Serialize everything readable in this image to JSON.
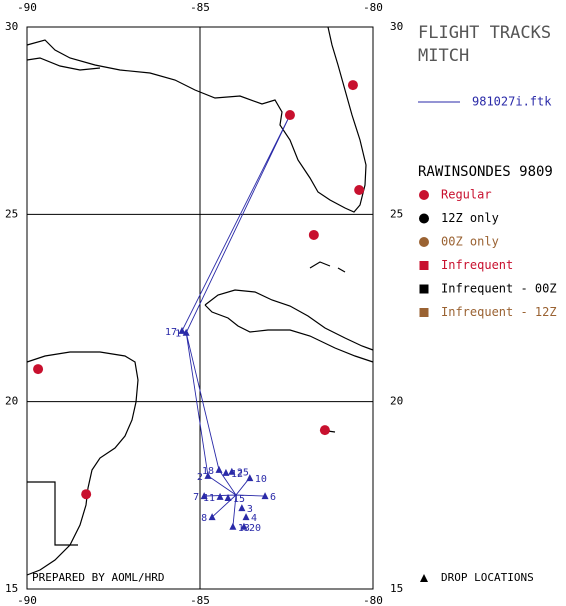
{
  "map": {
    "title": [
      "FLIGHT TRACKS",
      "MITCH"
    ],
    "lon_range": [
      -90,
      -80
    ],
    "lat_range": [
      15,
      30
    ],
    "lon_ticks": [
      -90,
      -85,
      -80
    ],
    "lat_ticks": [
      30,
      25,
      20,
      15
    ],
    "credit": "PREPARED BY AOML/HRD"
  },
  "flight_track": {
    "name": "981027i.ftk",
    "color": "#2a2aa8",
    "points": [
      {
        "lon": -82.4,
        "lat": 27.65
      },
      {
        "lon": -85.52,
        "lat": 21.89
      },
      {
        "lon": -85.4,
        "lat": 21.84
      },
      {
        "lon": -84.77,
        "lat": 18.02
      },
      {
        "lon": -83.96,
        "lat": 17.51
      },
      {
        "lon": -83.56,
        "lat": 17.97
      },
      {
        "lon": -83.96,
        "lat": 17.51
      },
      {
        "lon": -83.12,
        "lat": 17.48
      },
      {
        "lon": -83.96,
        "lat": 17.51
      },
      {
        "lon": -84.05,
        "lat": 16.66
      },
      {
        "lon": -83.96,
        "lat": 17.51
      },
      {
        "lon": -84.88,
        "lat": 17.48
      },
      {
        "lon": -83.96,
        "lat": 17.51
      },
      {
        "lon": -84.65,
        "lat": 16.92
      },
      {
        "lon": -83.96,
        "lat": 17.51
      },
      {
        "lon": -84.45,
        "lat": 18.18
      },
      {
        "lon": -85.4,
        "lat": 21.84
      },
      {
        "lon": -82.4,
        "lat": 27.65
      }
    ]
  },
  "drops": {
    "label": "DROP LOCATIONS",
    "points": [
      {
        "label": "17",
        "lon": -85.52,
        "lat": 21.89
      },
      {
        "label": "1",
        "lon": -85.4,
        "lat": 21.84
      },
      {
        "label": "2",
        "lon": -84.77,
        "lat": 18.02
      },
      {
        "label": "18",
        "lon": -84.45,
        "lat": 18.18
      },
      {
        "label": "12",
        "lon": -84.25,
        "lat": 18.1
      },
      {
        "label": "25",
        "lon": -84.08,
        "lat": 18.13
      },
      {
        "label": "10",
        "lon": -83.56,
        "lat": 17.96
      },
      {
        "label": "7",
        "lon": -84.88,
        "lat": 17.48
      },
      {
        "label": "11",
        "lon": -84.42,
        "lat": 17.46
      },
      {
        "label": "15",
        "lon": -84.19,
        "lat": 17.43
      },
      {
        "label": "6",
        "lon": -83.12,
        "lat": 17.48
      },
      {
        "label": "8",
        "lon": -84.65,
        "lat": 16.92
      },
      {
        "label": "3",
        "lon": -83.79,
        "lat": 17.16
      },
      {
        "label": "4",
        "lon": -83.67,
        "lat": 16.92
      },
      {
        "label": "13",
        "lon": -84.05,
        "lat": 16.66
      },
      {
        "label": "20",
        "lon": -83.73,
        "lat": 16.66
      }
    ]
  },
  "rawinsondes": {
    "title": "RAWINSONDES 9809",
    "categories": [
      {
        "name": "Regular",
        "color": "#c8102e",
        "shape": "circle"
      },
      {
        "name": "12Z only",
        "color": "#000000",
        "shape": "circle"
      },
      {
        "name": "00Z only",
        "color": "#9a6232",
        "shape": "circle"
      },
      {
        "name": "Infrequent",
        "color": "#c8102e",
        "shape": "square"
      },
      {
        "name": "Infrequent - 00Z",
        "color": "#000000",
        "shape": "square"
      },
      {
        "name": "Infrequent - 12Z",
        "color": "#9a6232",
        "shape": "square"
      }
    ],
    "stations": [
      {
        "category": 0,
        "lon": -82.4,
        "lat": 27.65
      },
      {
        "category": 0,
        "lon": -80.58,
        "lat": 28.45
      },
      {
        "category": 0,
        "lon": -80.4,
        "lat": 25.65
      },
      {
        "category": 0,
        "lon": -81.71,
        "lat": 24.45
      },
      {
        "category": 0,
        "lon": -89.68,
        "lat": 20.87
      },
      {
        "category": 0,
        "lon": -88.29,
        "lat": 17.53
      },
      {
        "category": 0,
        "lon": -81.39,
        "lat": 19.24
      }
    ]
  }
}
